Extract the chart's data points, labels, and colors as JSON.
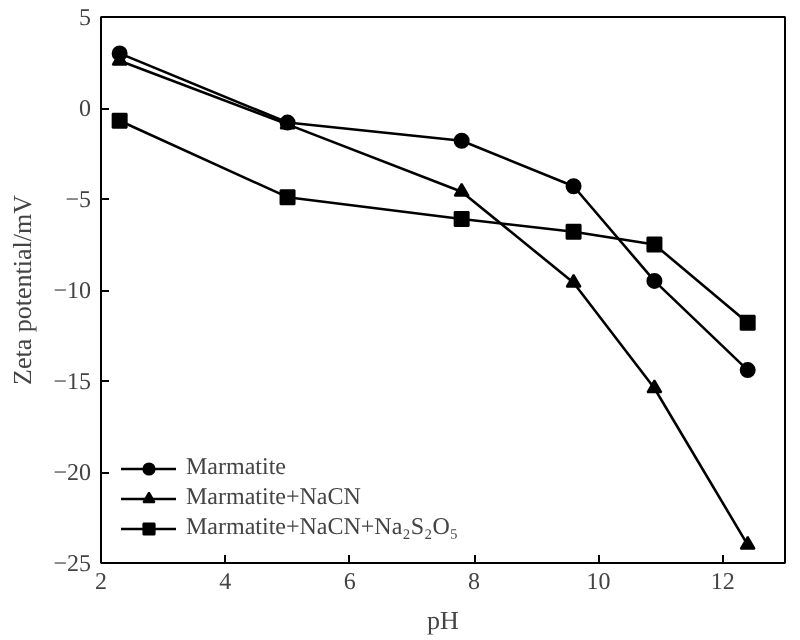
{
  "chart_data": {
    "type": "line",
    "xlabel": "pH",
    "ylabel": "Zeta potential/mV",
    "x": [
      2.3,
      5.0,
      7.8,
      9.6,
      10.9,
      12.4
    ],
    "series": [
      {
        "name": "Marmatite",
        "color": "#000000",
        "marker": "circle",
        "values": [
          3.0,
          -0.8,
          -1.8,
          -4.3,
          -9.5,
          -14.4
        ]
      },
      {
        "name": "Marmatite+NaCN",
        "color": "#000000",
        "marker": "triangle",
        "values": [
          2.6,
          -0.9,
          -4.6,
          -9.6,
          -15.4,
          -24.0
        ]
      },
      {
        "name": "Marmatite+NaCN+Na₂S₂O₅",
        "color": "#000000",
        "marker": "square",
        "values": [
          -0.7,
          -4.9,
          -6.1,
          -6.8,
          -7.5,
          -11.8
        ]
      }
    ],
    "xlim": [
      2,
      13
    ],
    "ylim": [
      -25,
      5
    ],
    "xticks": [
      2,
      4,
      6,
      8,
      10,
      12
    ],
    "yticks": [
      5,
      0,
      -5,
      -10,
      -15,
      -20,
      -25
    ],
    "grid": false,
    "legend": "bottom left",
    "line_style": "solid"
  }
}
